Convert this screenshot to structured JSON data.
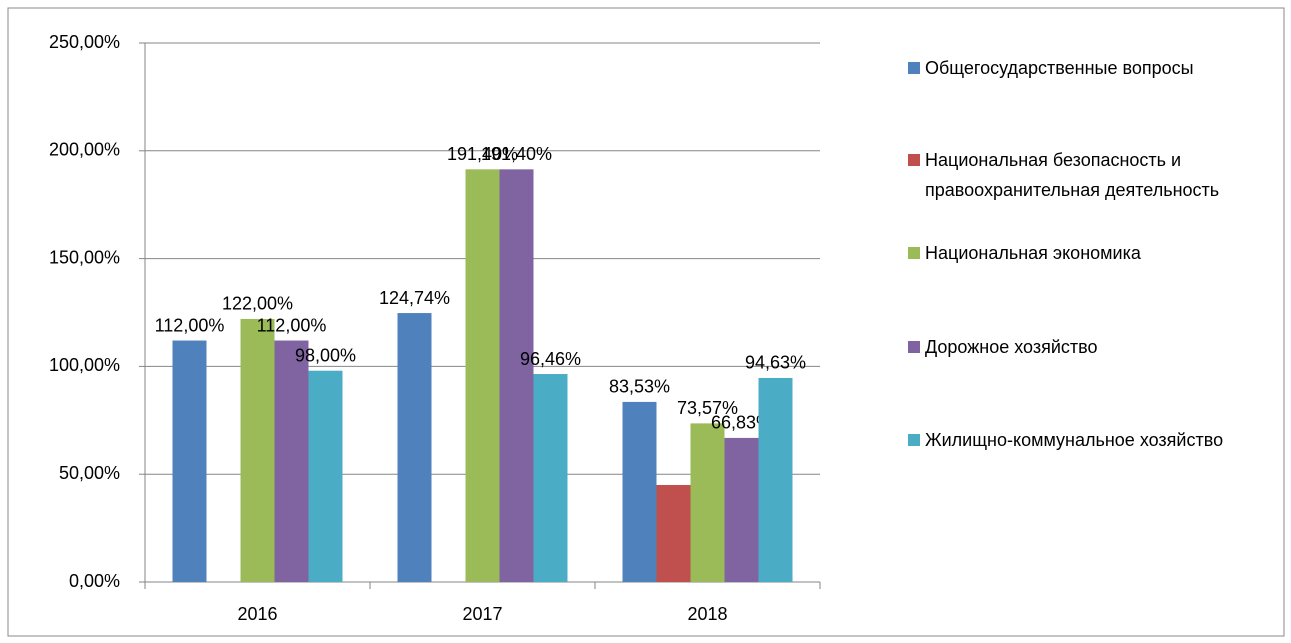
{
  "chart_data": {
    "type": "bar",
    "categories": [
      "2016",
      "2017",
      "2018"
    ],
    "series": [
      {
        "name": "Общегосударственные вопросы",
        "color": "#4f81bd",
        "values": [
          112,
          124.74,
          83.53
        ],
        "value_labels": [
          "112,00%",
          "124,74%",
          "83,53%"
        ]
      },
      {
        "name": "Национальная безопасность и правоохранительная деятельность",
        "color": "#c0504d",
        "values": [
          null,
          null,
          45
        ]
      },
      {
        "name": "Национальная экономика",
        "color": "#9bbb59",
        "values": [
          122,
          191.4,
          73.57
        ],
        "value_labels": [
          "122,00%",
          "191,40%",
          "73,57%"
        ]
      },
      {
        "name": "Дорожное хозяйство",
        "color": "#8064a2",
        "values": [
          112,
          191.4,
          66.83
        ],
        "value_labels": [
          "112,00%",
          "191,40%",
          "66,83%"
        ]
      },
      {
        "name": "Жилищно-коммунальное хозяйство",
        "color": "#4bacc6",
        "values": [
          98,
          96.46,
          94.63
        ],
        "value_labels": [
          "98,00%",
          "96,46%",
          "94,63%"
        ]
      }
    ],
    "ylim": [
      0,
      250
    ],
    "yticks": [
      {
        "value": 0,
        "label": "0,00%"
      },
      {
        "value": 50,
        "label": "50,00%"
      },
      {
        "value": 100,
        "label": "100,00%"
      },
      {
        "value": 150,
        "label": "150,00%"
      },
      {
        "value": 200,
        "label": "200,00%"
      },
      {
        "value": 250,
        "label": "250,00%"
      }
    ],
    "grid": true,
    "legend": "right"
  }
}
